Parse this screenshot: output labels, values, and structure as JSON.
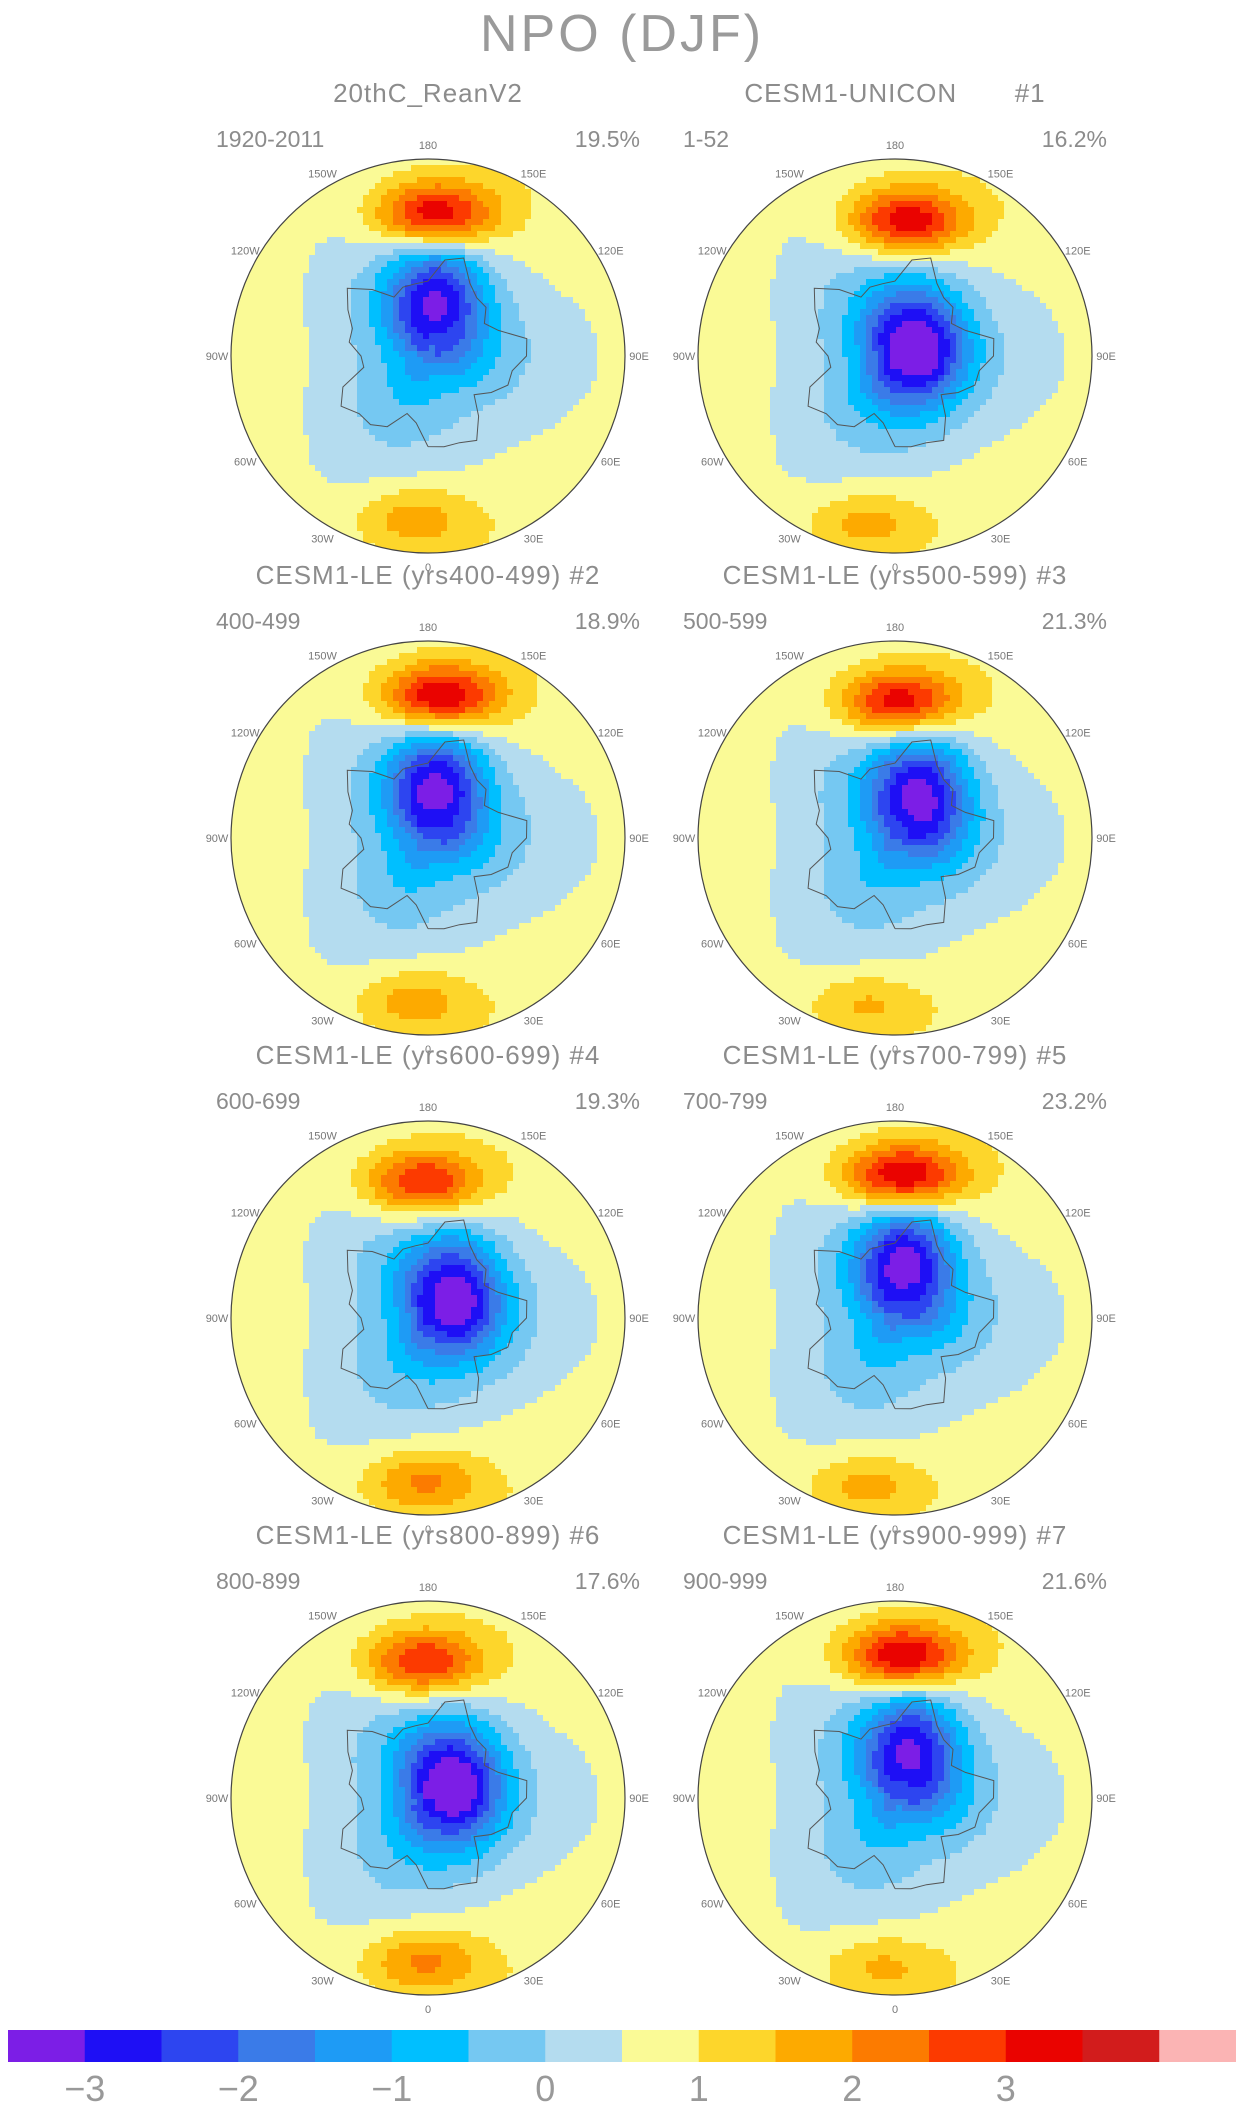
{
  "figure": {
    "title": "NPO (DJF)"
  },
  "panels": [
    {
      "title": "20thC_ReanV2",
      "run": "",
      "years": "1920-2011",
      "percent": "19.5%",
      "centers": [
        {
          "type": "neg",
          "lon": 170,
          "colat": 20,
          "amp": 3.0
        },
        {
          "type": "pos",
          "lon": 177,
          "colat": 50,
          "amp": 3.1
        },
        {
          "type": "pos",
          "lon": -5,
          "colat": 58,
          "amp": 1.2
        }
      ]
    },
    {
      "title": "CESM1-UNICON",
      "run": "#1",
      "years": "1-52",
      "percent": "16.2%",
      "centers": [
        {
          "type": "neg",
          "lon": 115,
          "colat": 8,
          "amp": 3.4
        },
        {
          "type": "pos",
          "lon": 175,
          "colat": 48,
          "amp": 2.9
        },
        {
          "type": "pos",
          "lon": -10,
          "colat": 60,
          "amp": 1.1
        }
      ]
    },
    {
      "title": "CESM1-LE (yrs400-499)",
      "run": "#2",
      "years": "400-499",
      "percent": "18.9%",
      "centers": [
        {
          "type": "neg",
          "lon": 168,
          "colat": 18,
          "amp": 3.1
        },
        {
          "type": "pos",
          "lon": 175,
          "colat": 50,
          "amp": 3.2
        },
        {
          "type": "pos",
          "lon": -5,
          "colat": 58,
          "amp": 1.2
        }
      ]
    },
    {
      "title": "CESM1-LE (yrs500-599)",
      "run": "#3",
      "years": "500-599",
      "percent": "21.3%",
      "centers": [
        {
          "type": "neg",
          "lon": 150,
          "colat": 18,
          "amp": 3.2
        },
        {
          "type": "pos",
          "lon": 178,
          "colat": 48,
          "amp": 3.0
        },
        {
          "type": "pos",
          "lon": -10,
          "colat": 60,
          "amp": 1.0
        }
      ]
    },
    {
      "title": "CESM1-LE (yrs600-699)",
      "run": "#4",
      "years": "600-699",
      "percent": "19.3%",
      "centers": [
        {
          "type": "neg",
          "lon": 130,
          "colat": 12,
          "amp": 3.2
        },
        {
          "type": "pos",
          "lon": -178,
          "colat": 48,
          "amp": 2.6
        },
        {
          "type": "pos",
          "lon": -2,
          "colat": 58,
          "amp": 1.5
        }
      ]
    },
    {
      "title": "CESM1-LE (yrs700-799)",
      "run": "#5",
      "years": "700-799",
      "percent": "23.2%",
      "centers": [
        {
          "type": "neg",
          "lon": 168,
          "colat": 20,
          "amp": 3.2
        },
        {
          "type": "pos",
          "lon": 177,
          "colat": 50,
          "amp": 3.3
        },
        {
          "type": "pos",
          "lon": -10,
          "colat": 60,
          "amp": 1.1
        }
      ]
    },
    {
      "title": "CESM1-LE (yrs800-899)",
      "run": "#6",
      "years": "800-899",
      "percent": "17.6%",
      "centers": [
        {
          "type": "neg",
          "lon": 120,
          "colat": 10,
          "amp": 3.4
        },
        {
          "type": "pos",
          "lon": -178,
          "colat": 48,
          "amp": 2.6
        },
        {
          "type": "pos",
          "lon": -2,
          "colat": 58,
          "amp": 1.5
        }
      ]
    },
    {
      "title": "CESM1-LE (yrs900-999)",
      "run": "#7",
      "years": "900-999",
      "percent": "21.6%",
      "centers": [
        {
          "type": "neg",
          "lon": 160,
          "colat": 18,
          "amp": 3.0
        },
        {
          "type": "pos",
          "lon": 177,
          "colat": 50,
          "amp": 3.2
        },
        {
          "type": "pos",
          "lon": -5,
          "colat": 60,
          "amp": 1.0
        }
      ]
    }
  ],
  "lon_labels": [
    "180",
    "150E",
    "120E",
    "90E",
    "60E",
    "30E",
    "0",
    "30W",
    "60W",
    "90W",
    "120W",
    "150W"
  ],
  "colorbar": {
    "colors": [
      "#7c1ee6",
      "#1e0ff5",
      "#2d45f0",
      "#3a7be8",
      "#1e9bf5",
      "#00bfff",
      "#75c8f2",
      "#b4dcef",
      "#fafa96",
      "#fdd62b",
      "#fdaa00",
      "#fc7b00",
      "#fc3a00",
      "#ea0300",
      "#d21c1c",
      "#fbb4b4"
    ],
    "tick_labels": [
      "−3",
      "−2",
      "−1",
      "0",
      "1",
      "2",
      "3"
    ]
  },
  "chart_data": {
    "type": "heatmap",
    "title": "NPO (DJF)",
    "projection": "north-polar-stereographic",
    "panels": [
      {
        "name": "20thC_ReanV2",
        "years": "1920-2011",
        "explained_variance": "19.5%"
      },
      {
        "name": "CESM1-UNICON #1",
        "years": "1-52",
        "explained_variance": "16.2%"
      },
      {
        "name": "CESM1-LE (yrs400-499) #2",
        "years": "400-499",
        "explained_variance": "18.9%"
      },
      {
        "name": "CESM1-LE (yrs500-599) #3",
        "years": "500-599",
        "explained_variance": "21.3%"
      },
      {
        "name": "CESM1-LE (yrs600-699) #4",
        "years": "600-699",
        "explained_variance": "19.3%"
      },
      {
        "name": "CESM1-LE (yrs700-799) #5",
        "years": "700-799",
        "explained_variance": "23.2%"
      },
      {
        "name": "CESM1-LE (yrs800-899) #6",
        "years": "800-899",
        "explained_variance": "17.6%"
      },
      {
        "name": "CESM1-LE (yrs900-999) #7",
        "years": "900-999",
        "explained_variance": "21.6%"
      }
    ],
    "colorbar_ticks": [
      -3,
      -2,
      -1,
      0,
      1,
      2,
      3
    ],
    "colorbar_range": [
      -3.5,
      4.0
    ],
    "colorbar_step": 0.5
  }
}
